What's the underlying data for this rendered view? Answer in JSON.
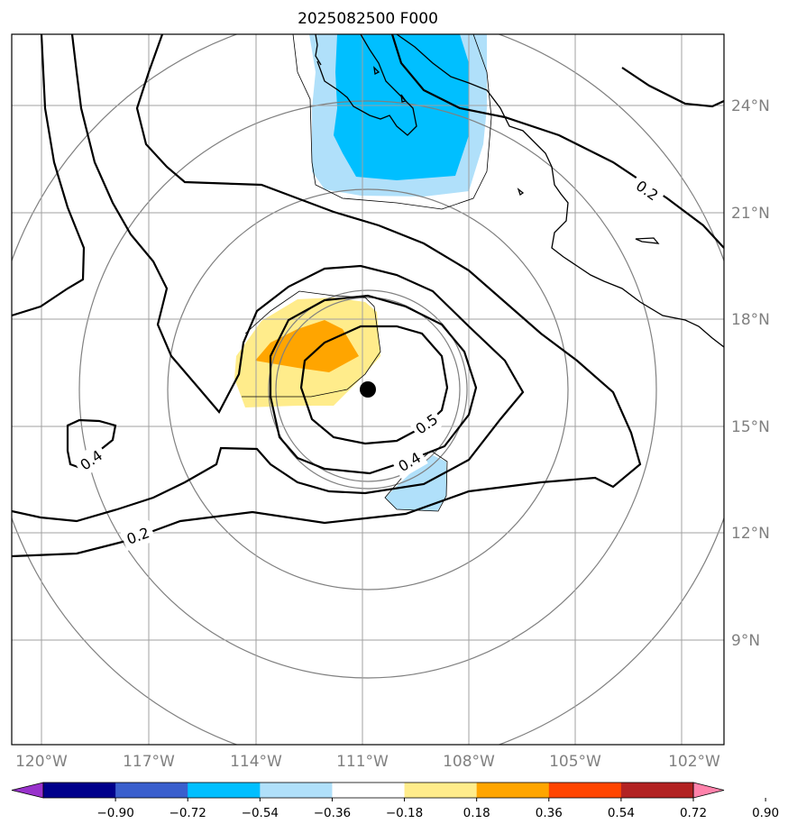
{
  "title": "2025082500 F000",
  "map": {
    "lat_labels": [
      "24°N",
      "21°N",
      "18°N",
      "15°N",
      "12°N",
      "9°N"
    ],
    "lon_labels": [
      "120°W",
      "117°W",
      "114°W",
      "111°W",
      "108°W",
      "105°W",
      "102°W"
    ],
    "contour_labels": [
      "0.2",
      "0.4",
      "0.5",
      "0.4",
      "0.2"
    ],
    "center_marker": "storm-center"
  },
  "colorbar": {
    "labels": [
      "−0.90",
      "−0.72",
      "−0.54",
      "−0.36",
      "−0.18",
      "0.18",
      "0.36",
      "0.54",
      "0.72",
      "0.90"
    ],
    "colors": [
      "#9932cc",
      "#00008b",
      "#3a5fcd",
      "#00bfff",
      "#b0e0fa",
      "#ffffff",
      "#ffec8b",
      "#ffa500",
      "#ff4500",
      "#b22222",
      "#ff82ab"
    ],
    "under_color": "#9932cc",
    "over_color": "#ff82ab"
  },
  "colors": {
    "grid": "#a0a0a0",
    "range_rings": "#808080",
    "coast": "#000000",
    "contour": "#000000"
  }
}
